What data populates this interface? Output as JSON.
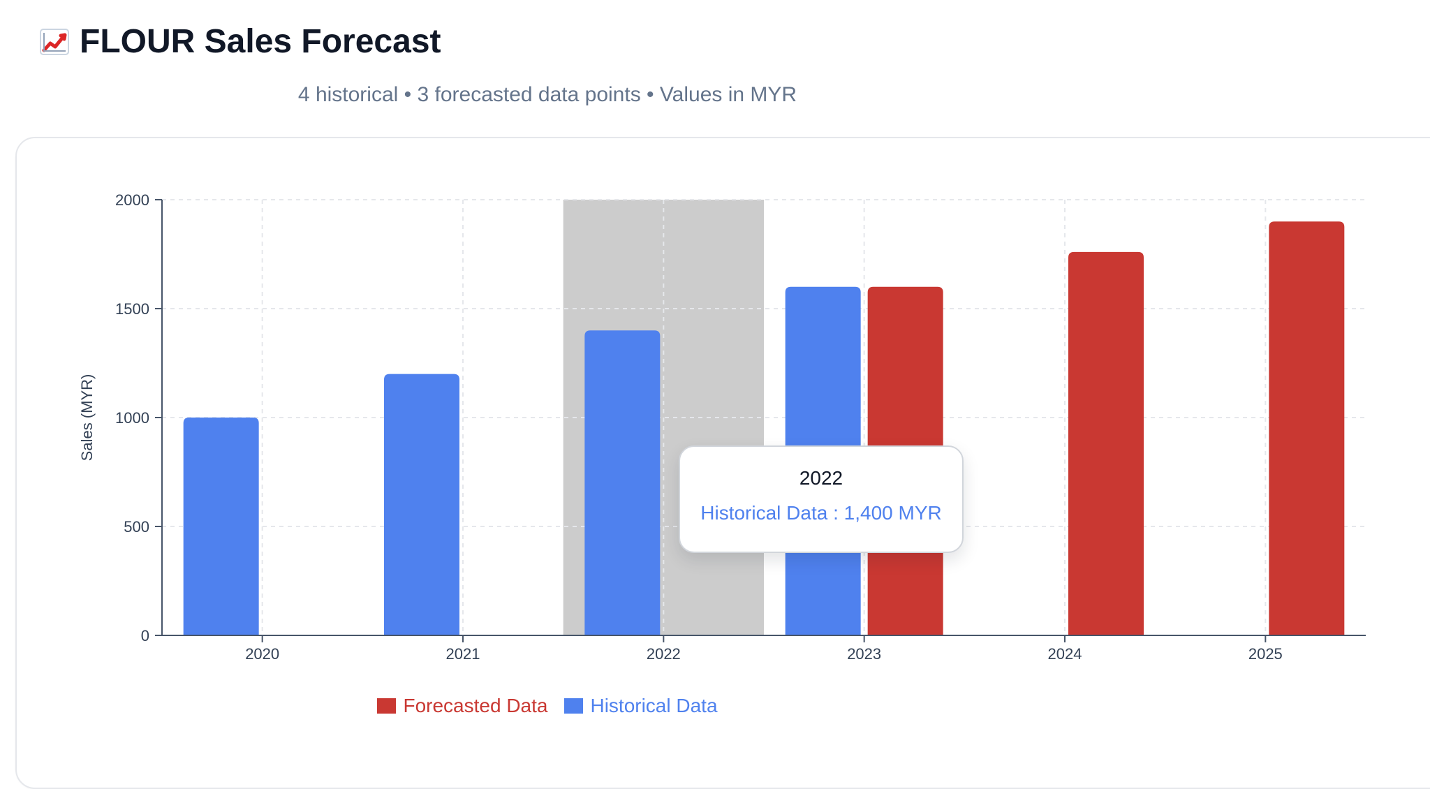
{
  "header": {
    "title": "FLOUR Sales Forecast",
    "icon": "chart-increasing-icon",
    "subtitle": "4 historical • 3 forecasted data points • Values in MYR"
  },
  "colors": {
    "historical": "#4f81ee",
    "forecasted": "#c93832",
    "highlight": "#cccccc",
    "axis": "#475569",
    "grid": "#e5e7eb",
    "text": "#334155"
  },
  "chart_data": {
    "type": "bar",
    "ylabel": "Sales (MYR)",
    "xlabel": "",
    "categories": [
      "2020",
      "2021",
      "2022",
      "2023",
      "2024",
      "2025"
    ],
    "ylim": [
      0,
      2000
    ],
    "yticks": [
      "0",
      "500",
      "1000",
      "1500",
      "2000"
    ],
    "grid": true,
    "legend_position": "bottom",
    "series": [
      {
        "name": "Historical Data",
        "values": [
          1000,
          1200,
          1400,
          1600,
          null,
          null
        ]
      },
      {
        "name": "Forecasted Data",
        "values": [
          null,
          null,
          null,
          1600,
          1760,
          1900
        ]
      }
    ],
    "highlight_category": "2022",
    "legend": [
      "Forecasted Data",
      "Historical Data"
    ]
  },
  "tooltip": {
    "label": "2022",
    "text": "Historical Data : 1,400 MYR"
  }
}
